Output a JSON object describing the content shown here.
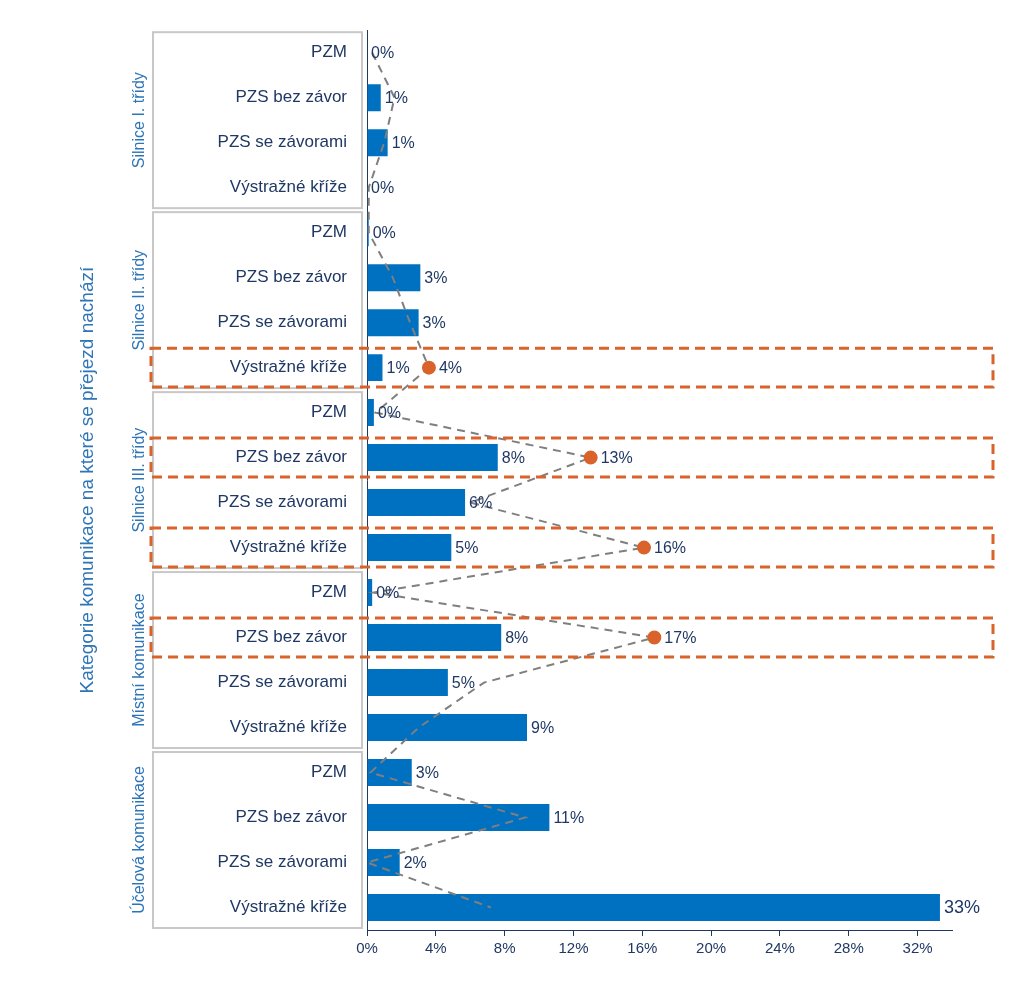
{
  "chart_data": {
    "type": "bar",
    "orientation": "horizontal",
    "y_label": "Kategorie komunikace na které se přejezd nachází",
    "groups": [
      "Silnice I. třídy",
      "Silnice II. třídy",
      "Silnice III. třídy",
      "Místní komunikace",
      "Účelová komunikace"
    ],
    "categories": [
      "PZM",
      "PZS bez závor",
      "PZS se závorami",
      "Výstražné kříže",
      "PZM",
      "PZS bez závor",
      "PZS se závorami",
      "Výstražné kříže",
      "PZM",
      "PZS bez závor",
      "PZS se závorami",
      "Výstražné kříže",
      "PZM",
      "PZS bez závor",
      "PZS se závorami",
      "Výstražné kříže",
      "PZM",
      "PZS bez závor",
      "PZS se závorami",
      "Výstražné kříže"
    ],
    "series": [
      {
        "type": "bar",
        "color": "#0070c0",
        "values": [
          0,
          0.8,
          1.2,
          0,
          0.1,
          3.1,
          3.0,
          0.9,
          0.4,
          7.6,
          5.7,
          4.9,
          0.3,
          7.8,
          4.7,
          9.3,
          2.6,
          10.6,
          1.9,
          33.3
        ],
        "value_labels": [
          "0%",
          "1%",
          "1%",
          "0%",
          "0%",
          "3%",
          "3%",
          "1%",
          "0%",
          "8%",
          "6%",
          "5%",
          "0%",
          "8%",
          "5%",
          "9%",
          "3%",
          "11%",
          "2%",
          "33%"
        ]
      },
      {
        "type": "line",
        "color": "#7f7f7f",
        "line_style": "dashed",
        "marker": "circle",
        "values": [
          0.3,
          1.6,
          1.0,
          0.1,
          0.1,
          1.5,
          2.5,
          3.6,
          0.5,
          13.0,
          6.0,
          16.1,
          0.4,
          16.7,
          6.8,
          3.0,
          0.2,
          9.2,
          0,
          7.2
        ],
        "value_labels": [
          null,
          null,
          null,
          null,
          null,
          null,
          null,
          "4%",
          null,
          "13%",
          null,
          "16%",
          null,
          "17%",
          null,
          null,
          null,
          null,
          null,
          null
        ]
      }
    ],
    "xlim": [
      0,
      34
    ],
    "xticks": [
      {
        "value": 0,
        "label": "0%"
      },
      {
        "value": 4,
        "label": "4%"
      },
      {
        "value": 8,
        "label": "8%"
      },
      {
        "value": 12,
        "label": "12%"
      },
      {
        "value": 16,
        "label": "16%"
      },
      {
        "value": 20,
        "label": "20%"
      },
      {
        "value": 24,
        "label": "24%"
      },
      {
        "value": 28,
        "label": "28%"
      },
      {
        "value": 32,
        "label": "32%"
      }
    ],
    "grid": false,
    "data_labels": true
  }
}
